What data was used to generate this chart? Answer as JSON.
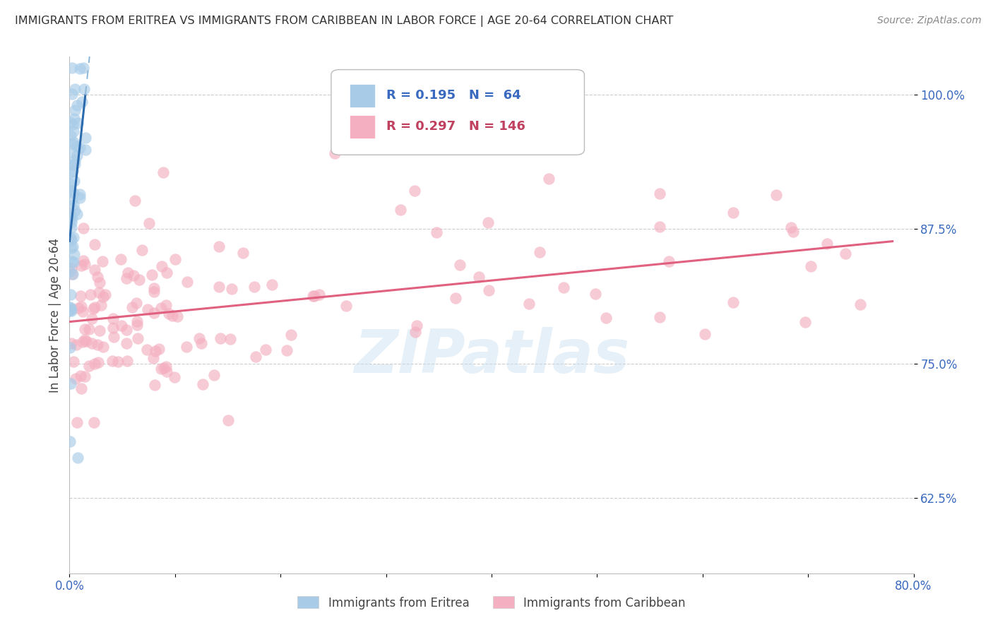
{
  "title": "IMMIGRANTS FROM ERITREA VS IMMIGRANTS FROM CARIBBEAN IN LABOR FORCE | AGE 20-64 CORRELATION CHART",
  "source": "Source: ZipAtlas.com",
  "ylabel": "In Labor Force | Age 20-64",
  "xlim": [
    0.0,
    0.8
  ],
  "ylim": [
    0.555,
    1.035
  ],
  "x_ticks": [
    0.0,
    0.1,
    0.2,
    0.3,
    0.4,
    0.5,
    0.6,
    0.7,
    0.8
  ],
  "x_tick_labels": [
    "0.0%",
    "",
    "",
    "",
    "",
    "",
    "",
    "",
    "80.0%"
  ],
  "y_ticks": [
    0.625,
    0.75,
    0.875,
    1.0
  ],
  "y_tick_labels": [
    "62.5%",
    "75.0%",
    "87.5%",
    "100.0%"
  ],
  "watermark": "ZIPatlas",
  "eritrea_color": "#a8cce8",
  "caribbean_color": "#f4afc0",
  "eritrea_line_color": "#2a6aad",
  "caribbean_line_color": "#e06080",
  "eritrea_line_dashed_color": "#90b8d8",
  "R_eritrea": 0.195,
  "N_eritrea": 64,
  "R_caribbean": 0.297,
  "N_caribbean": 146
}
